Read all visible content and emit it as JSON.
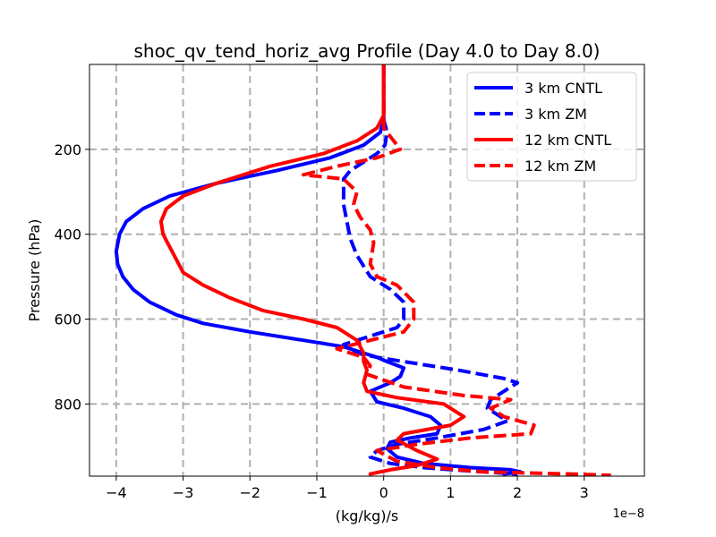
{
  "chart_data": {
    "type": "line",
    "title": "shoc_qv_tend_horiz_avg Profile (Day 4.0 to Day 8.0)",
    "xlabel": "(kg/kg)/s",
    "ylabel": "Pressure (hPa)",
    "x_offset_text": "1e−8",
    "xlim": [
      -4.4,
      3.9
    ],
    "ylim": [
      970,
      0
    ],
    "xticks": [
      -4,
      -3,
      -2,
      -1,
      0,
      1,
      2,
      3
    ],
    "xtick_labels": [
      "−4",
      "−3",
      "−2",
      "−1",
      "0",
      "1",
      "2",
      "3"
    ],
    "yticks": [
      200,
      400,
      600,
      800
    ],
    "ytick_labels": [
      "200",
      "400",
      "600",
      "800"
    ],
    "grid": true,
    "legend_position": "top-right",
    "series": [
      {
        "name": "3 km CNTL",
        "color": "#0000ff",
        "style": "solid",
        "x": [
          0,
          0,
          0,
          0,
          -0.05,
          -0.3,
          -0.8,
          -1.6,
          -2.5,
          -3.2,
          -3.6,
          -3.85,
          -3.95,
          -4.0,
          -3.98,
          -3.9,
          -3.75,
          -3.5,
          -3.1,
          -2.7,
          -2.0,
          -1.2,
          -0.6,
          -0.3,
          -0.1,
          0.05,
          0.3,
          0.25,
          0.1,
          -0.2,
          -0.1,
          0.3,
          0.7,
          0.85,
          0.8,
          0.4,
          0.1,
          0.05,
          0.2,
          0.6,
          1.3,
          1.9,
          2.05,
          1.8
        ],
        "y": [
          0,
          50,
          100,
          130,
          160,
          190,
          220,
          250,
          280,
          310,
          340,
          370,
          400,
          440,
          470,
          500,
          530,
          560,
          590,
          610,
          630,
          650,
          665,
          680,
          690,
          700,
          715,
          735,
          750,
          770,
          795,
          810,
          830,
          850,
          870,
          880,
          890,
          905,
          925,
          940,
          950,
          955,
          960,
          965
        ]
      },
      {
        "name": "3 km ZM",
        "color": "#0000ff",
        "style": "dashed",
        "x": [
          0,
          0,
          0,
          0,
          0.05,
          0.02,
          -0.1,
          -0.3,
          -0.5,
          -0.6,
          -0.6,
          -0.6,
          -0.55,
          -0.5,
          -0.4,
          -0.2,
          0.1,
          0.3,
          0.3,
          0.2,
          -0.2,
          -0.6,
          -0.4,
          -0.1,
          0.3,
          1.1,
          1.8,
          2.0,
          1.8,
          1.6,
          1.55,
          1.85,
          1.5,
          0.8,
          0.2,
          -0.1,
          -0.2,
          0.1,
          0.6,
          1.5,
          2.0
        ],
        "y": [
          0,
          50,
          100,
          130,
          160,
          190,
          210,
          230,
          250,
          270,
          300,
          330,
          370,
          410,
          450,
          500,
          530,
          560,
          600,
          620,
          640,
          660,
          680,
          690,
          700,
          720,
          740,
          750,
          770,
          790,
          810,
          840,
          860,
          880,
          895,
          910,
          925,
          940,
          950,
          960,
          965
        ]
      },
      {
        "name": "12 km CNTL",
        "color": "#ff0000",
        "style": "solid",
        "x": [
          0,
          0,
          0,
          0,
          -0.1,
          -0.4,
          -0.9,
          -1.7,
          -2.5,
          -3.0,
          -3.25,
          -3.33,
          -3.3,
          -3.2,
          -3.1,
          -3.0,
          -2.7,
          -2.3,
          -1.8,
          -1.2,
          -0.7,
          -0.4,
          -0.3,
          -0.3,
          -0.25,
          -0.3,
          -0.25,
          0.2,
          0.9,
          1.2,
          1.0,
          0.3,
          0.2,
          0.5,
          0.8,
          0.5,
          0.1,
          -0.2
        ],
        "y": [
          0,
          50,
          100,
          120,
          150,
          180,
          210,
          240,
          280,
          310,
          340,
          370,
          400,
          430,
          460,
          490,
          520,
          550,
          580,
          600,
          620,
          650,
          680,
          700,
          720,
          750,
          770,
          785,
          800,
          830,
          850,
          870,
          885,
          910,
          930,
          945,
          955,
          965
        ]
      },
      {
        "name": "12 km ZM",
        "color": "#ff0000",
        "style": "dashed",
        "x": [
          0,
          0,
          0,
          0,
          0.25,
          -0.1,
          -0.7,
          -1.2,
          -0.6,
          -0.4,
          -0.45,
          -0.35,
          -0.2,
          -0.15,
          -0.2,
          -0.1,
          0.2,
          0.45,
          0.45,
          0.3,
          -0.2,
          -0.7,
          -0.3,
          -0.2,
          -0.25,
          0.3,
          1.2,
          1.9,
          1.6,
          1.8,
          2.25,
          2.2,
          1.3,
          0.5,
          -0.1,
          0.2,
          0.8,
          1.5,
          2.8,
          3.4
        ],
        "y": [
          0,
          50,
          100,
          150,
          200,
          220,
          240,
          260,
          270,
          300,
          330,
          360,
          390,
          420,
          470,
          500,
          520,
          560,
          600,
          630,
          650,
          670,
          690,
          710,
          730,
          760,
          780,
          790,
          810,
          830,
          850,
          870,
          880,
          895,
          910,
          935,
          950,
          960,
          965,
          968
        ]
      }
    ]
  }
}
